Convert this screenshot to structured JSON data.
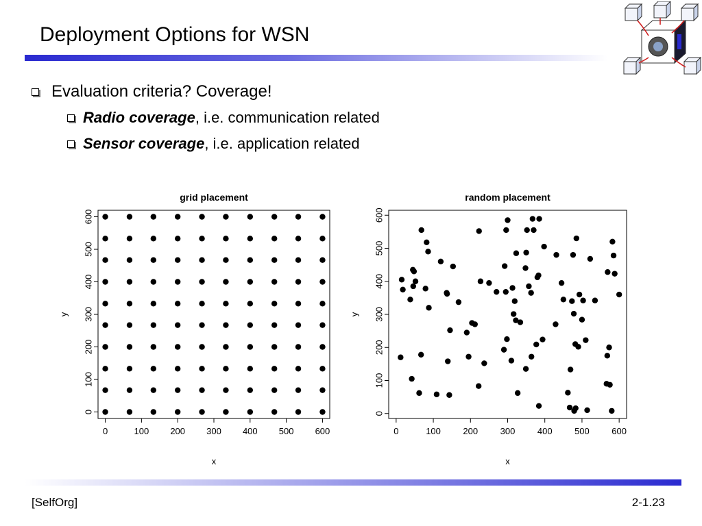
{
  "slide": {
    "title": "Deployment Options for WSN",
    "bullets": {
      "level1": "Evaluation criteria? Coverage!",
      "radio_em": "Radio coverage",
      "radio_rest": ", i.e. communication related",
      "sensor_em": "Sensor coverage",
      "sensor_rest": ", i.e. application related"
    },
    "footer": {
      "left": "[SelfOrg]",
      "right": "2-1.23"
    }
  },
  "colors": {
    "accent": "#2a2ad0",
    "points": "#000000"
  },
  "chart_data": [
    {
      "type": "scatter",
      "title": "grid placement",
      "xlabel": "x",
      "ylabel": "y",
      "xlim": [
        -20,
        620
      ],
      "ylim": [
        -20,
        620
      ],
      "xticks": [
        "0",
        "100",
        "200",
        "300",
        "400",
        "500",
        "600"
      ],
      "yticks": [
        "0",
        "100",
        "200",
        "300",
        "400",
        "500",
        "600"
      ],
      "grid": false,
      "points": [
        [
          0,
          0
        ],
        [
          67,
          0
        ],
        [
          133,
          0
        ],
        [
          200,
          0
        ],
        [
          267,
          0
        ],
        [
          333,
          0
        ],
        [
          400,
          0
        ],
        [
          467,
          0
        ],
        [
          533,
          0
        ],
        [
          600,
          0
        ],
        [
          0,
          67
        ],
        [
          67,
          67
        ],
        [
          133,
          67
        ],
        [
          200,
          67
        ],
        [
          267,
          67
        ],
        [
          333,
          67
        ],
        [
          400,
          67
        ],
        [
          467,
          67
        ],
        [
          533,
          67
        ],
        [
          600,
          67
        ],
        [
          0,
          133
        ],
        [
          67,
          133
        ],
        [
          133,
          133
        ],
        [
          200,
          133
        ],
        [
          267,
          133
        ],
        [
          333,
          133
        ],
        [
          400,
          133
        ],
        [
          467,
          133
        ],
        [
          533,
          133
        ],
        [
          600,
          133
        ],
        [
          0,
          200
        ],
        [
          67,
          200
        ],
        [
          133,
          200
        ],
        [
          200,
          200
        ],
        [
          267,
          200
        ],
        [
          333,
          200
        ],
        [
          400,
          200
        ],
        [
          467,
          200
        ],
        [
          533,
          200
        ],
        [
          600,
          200
        ],
        [
          0,
          267
        ],
        [
          67,
          267
        ],
        [
          133,
          267
        ],
        [
          200,
          267
        ],
        [
          267,
          267
        ],
        [
          333,
          267
        ],
        [
          400,
          267
        ],
        [
          467,
          267
        ],
        [
          533,
          267
        ],
        [
          600,
          267
        ],
        [
          0,
          333
        ],
        [
          67,
          333
        ],
        [
          133,
          333
        ],
        [
          200,
          333
        ],
        [
          267,
          333
        ],
        [
          333,
          333
        ],
        [
          400,
          333
        ],
        [
          467,
          333
        ],
        [
          533,
          333
        ],
        [
          600,
          333
        ],
        [
          0,
          400
        ],
        [
          67,
          400
        ],
        [
          133,
          400
        ],
        [
          200,
          400
        ],
        [
          267,
          400
        ],
        [
          333,
          400
        ],
        [
          400,
          400
        ],
        [
          467,
          400
        ],
        [
          533,
          400
        ],
        [
          600,
          400
        ],
        [
          0,
          467
        ],
        [
          67,
          467
        ],
        [
          133,
          467
        ],
        [
          200,
          467
        ],
        [
          267,
          467
        ],
        [
          333,
          467
        ],
        [
          400,
          467
        ],
        [
          467,
          467
        ],
        [
          533,
          467
        ],
        [
          600,
          467
        ],
        [
          0,
          533
        ],
        [
          67,
          533
        ],
        [
          133,
          533
        ],
        [
          200,
          533
        ],
        [
          267,
          533
        ],
        [
          333,
          533
        ],
        [
          400,
          533
        ],
        [
          467,
          533
        ],
        [
          533,
          533
        ],
        [
          600,
          533
        ],
        [
          0,
          600
        ],
        [
          67,
          600
        ],
        [
          133,
          600
        ],
        [
          200,
          600
        ],
        [
          267,
          600
        ],
        [
          333,
          600
        ],
        [
          400,
          600
        ],
        [
          467,
          600
        ],
        [
          533,
          600
        ],
        [
          600,
          600
        ]
      ]
    },
    {
      "type": "scatter",
      "title": "random placement",
      "xlabel": "x",
      "ylabel": "y",
      "xlim": [
        -20,
        620
      ],
      "ylim": [
        -15,
        615
      ],
      "xticks": [
        "0",
        "100",
        "200",
        "300",
        "400",
        "500",
        "600"
      ],
      "yticks": [
        "0",
        "100",
        "200",
        "300",
        "400",
        "500",
        "600"
      ],
      "grid": false,
      "points": [
        [
          12,
          170
        ],
        [
          15,
          405
        ],
        [
          18,
          375
        ],
        [
          38,
          345
        ],
        [
          42,
          105
        ],
        [
          45,
          435
        ],
        [
          46,
          385
        ],
        [
          48,
          430
        ],
        [
          52,
          400
        ],
        [
          62,
          62
        ],
        [
          67,
          178
        ],
        [
          68,
          555
        ],
        [
          79,
          378
        ],
        [
          82,
          518
        ],
        [
          86,
          490
        ],
        [
          88,
          320
        ],
        [
          109,
          58
        ],
        [
          120,
          460
        ],
        [
          136,
          365
        ],
        [
          137,
          362
        ],
        [
          139,
          158
        ],
        [
          143,
          56
        ],
        [
          145,
          252
        ],
        [
          153,
          445
        ],
        [
          168,
          337
        ],
        [
          190,
          245
        ],
        [
          195,
          172
        ],
        [
          204,
          274
        ],
        [
          212,
          270
        ],
        [
          222,
          83
        ],
        [
          223,
          552
        ],
        [
          227,
          400
        ],
        [
          237,
          152
        ],
        [
          250,
          395
        ],
        [
          270,
          368
        ],
        [
          290,
          193
        ],
        [
          292,
          446
        ],
        [
          295,
          368
        ],
        [
          296,
          555
        ],
        [
          298,
          225
        ],
        [
          300,
          585
        ],
        [
          310,
          160
        ],
        [
          313,
          380
        ],
        [
          316,
          301
        ],
        [
          319,
          340
        ],
        [
          322,
          282
        ],
        [
          323,
          485
        ],
        [
          327,
          62
        ],
        [
          334,
          276
        ],
        [
          348,
          440
        ],
        [
          349,
          135
        ],
        [
          350,
          487
        ],
        [
          352,
          555
        ],
        [
          357,
          385
        ],
        [
          363,
          365
        ],
        [
          364,
          172
        ],
        [
          367,
          589
        ],
        [
          370,
          555
        ],
        [
          377,
          209
        ],
        [
          380,
          412
        ],
        [
          383,
          418
        ],
        [
          384,
          23
        ],
        [
          385,
          589
        ],
        [
          394,
          224
        ],
        [
          398,
          505
        ],
        [
          429,
          270
        ],
        [
          431,
          480
        ],
        [
          445,
          395
        ],
        [
          450,
          345
        ],
        [
          462,
          63
        ],
        [
          467,
          18
        ],
        [
          469,
          133
        ],
        [
          473,
          340
        ],
        [
          476,
          480
        ],
        [
          478,
          302
        ],
        [
          479,
          8
        ],
        [
          482,
          210
        ],
        [
          483,
          16
        ],
        [
          485,
          530
        ],
        [
          490,
          202
        ],
        [
          493,
          360
        ],
        [
          500,
          284
        ],
        [
          503,
          342
        ],
        [
          510,
          222
        ],
        [
          514,
          10
        ],
        [
          522,
          468
        ],
        [
          535,
          342
        ],
        [
          566,
          90
        ],
        [
          568,
          175
        ],
        [
          569,
          428
        ],
        [
          573,
          200
        ],
        [
          575,
          87
        ],
        [
          580,
          8
        ],
        [
          582,
          520
        ],
        [
          585,
          478
        ],
        [
          588,
          423
        ],
        [
          600,
          360
        ]
      ]
    }
  ]
}
